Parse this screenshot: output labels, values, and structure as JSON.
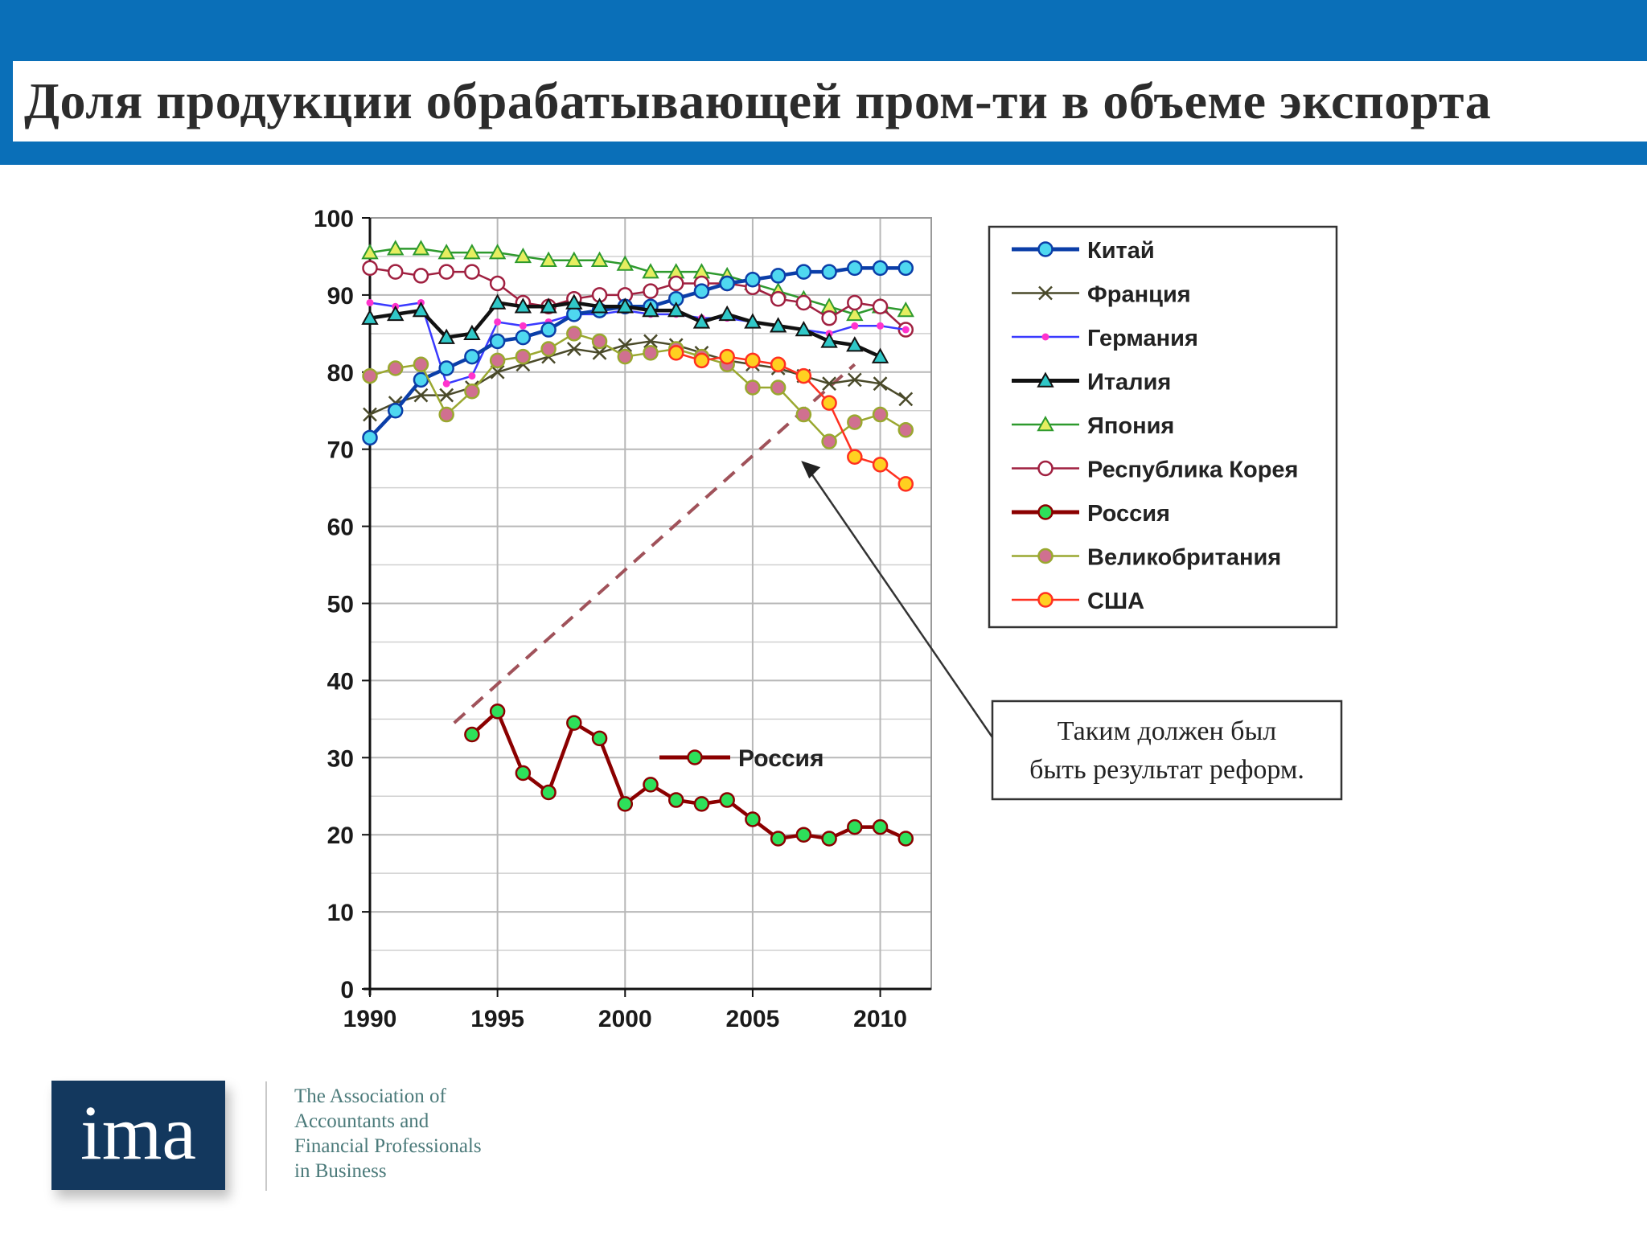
{
  "slide": {
    "title": "Доля продукции обрабатывающей пром-ти в объеме экспорта",
    "logo_text": "ima",
    "tagline": [
      "The Association of",
      "Accountants and",
      "Financial Professionals",
      "in Business"
    ],
    "colors": {
      "band": "#0a6fb8",
      "logo_bg": "#13385e"
    }
  },
  "chart_data": {
    "type": "line",
    "title": "",
    "xlabel": "",
    "ylabel": "",
    "xlim": [
      1990,
      2012
    ],
    "ylim": [
      0,
      100
    ],
    "x_ticks": [
      1990,
      1995,
      2000,
      2005,
      2010
    ],
    "y_ticks": [
      0,
      10,
      20,
      30,
      40,
      50,
      60,
      70,
      80,
      90,
      100
    ],
    "grid": true,
    "legend_position": "right",
    "series": [
      {
        "name": "Китай",
        "color": "#0b3ea8",
        "marker": "circle",
        "marker_fill": "#4fd8f0",
        "bold": true,
        "x": [
          1990,
          1991,
          1992,
          1993,
          1994,
          1995,
          1996,
          1997,
          1998,
          1999,
          2000,
          2001,
          2002,
          2003,
          2004,
          2005,
          2006,
          2007,
          2008,
          2009,
          2010,
          2011
        ],
        "y": [
          71.5,
          75,
          79,
          80.5,
          82,
          84,
          84.5,
          85.5,
          87.5,
          88,
          88.5,
          88.5,
          89.5,
          90.5,
          91.5,
          92,
          92.5,
          93,
          93,
          93.5,
          93.5,
          93.5
        ]
      },
      {
        "name": "Франция",
        "color": "#4a4a2a",
        "marker": "x",
        "bold": false,
        "x": [
          1990,
          1991,
          1992,
          1993,
          1994,
          1995,
          1996,
          1997,
          1998,
          1999,
          2000,
          2001,
          2002,
          2003,
          2004,
          2005,
          2006,
          2007,
          2008,
          2009,
          2010,
          2011
        ],
        "y": [
          74.5,
          76,
          77,
          77,
          78,
          80,
          81,
          82,
          83,
          82.5,
          83.5,
          84,
          83.5,
          82.5,
          81.5,
          81,
          80.5,
          79.5,
          78.5,
          79,
          78.5,
          76.5
        ]
      },
      {
        "name": "Германия",
        "color": "#3a3aff",
        "marker": "dot",
        "marker_fill": "#ff33cc",
        "bold": false,
        "x": [
          1990,
          1991,
          1992,
          1993,
          1994,
          1995,
          1996,
          1997,
          1998,
          1999,
          2000,
          2001,
          2002,
          2003,
          2004,
          2005,
          2006,
          2007,
          2008,
          2009,
          2010,
          2011
        ],
        "y": [
          89,
          88.5,
          89,
          78.5,
          79.5,
          86.5,
          86,
          86.5,
          87.5,
          87.5,
          88,
          87.5,
          87.5,
          87,
          87,
          86.5,
          86,
          85.5,
          85,
          86,
          86,
          85.5
        ]
      },
      {
        "name": "Италия",
        "color": "#111111",
        "marker": "triangle",
        "marker_fill": "#30c8c8",
        "bold": true,
        "x": [
          1990,
          1991,
          1992,
          1993,
          1994,
          1995,
          1996,
          1997,
          1998,
          1999,
          2000,
          2001,
          2002,
          2003,
          2004,
          2005,
          2006,
          2007,
          2008,
          2009,
          2010
        ],
        "y": [
          87,
          87.5,
          88,
          84.5,
          85,
          89,
          88.5,
          88.5,
          89,
          88.5,
          88.5,
          88,
          88,
          86.5,
          87.5,
          86.5,
          86,
          85.5,
          84,
          83.5,
          82
        ]
      },
      {
        "name": "Япония",
        "color": "#2e9a2e",
        "marker": "triangle",
        "marker_fill": "#e6ee60",
        "bold": false,
        "x": [
          1990,
          1991,
          1992,
          1993,
          1994,
          1995,
          1996,
          1997,
          1998,
          1999,
          2000,
          2001,
          2002,
          2003,
          2004,
          2005,
          2006,
          2007,
          2008,
          2009,
          2010,
          2011
        ],
        "y": [
          95.5,
          96,
          96,
          95.5,
          95.5,
          95.5,
          95,
          94.5,
          94.5,
          94.5,
          94,
          93,
          93,
          93,
          92.5,
          91.5,
          90.5,
          89.5,
          88.5,
          87.5,
          88.5,
          88
        ]
      },
      {
        "name": "Республика Корея",
        "color": "#a02040",
        "marker": "circle",
        "marker_fill": "#ffffff",
        "bold": false,
        "x": [
          1990,
          1991,
          1992,
          1993,
          1994,
          1995,
          1996,
          1997,
          1998,
          1999,
          2000,
          2001,
          2002,
          2003,
          2004,
          2005,
          2006,
          2007,
          2008,
          2009,
          2010,
          2011
        ],
        "y": [
          93.5,
          93,
          92.5,
          93,
          93,
          91.5,
          89,
          88.5,
          89.5,
          90,
          90,
          90.5,
          91.5,
          91.5,
          91.5,
          91,
          89.5,
          89,
          87,
          89,
          88.5,
          85.5
        ]
      },
      {
        "name": "Россия",
        "color": "#8b0000",
        "marker": "circle",
        "marker_fill": "#2ee05a",
        "bold": true,
        "x": [
          1994,
          1995,
          1996,
          1997,
          1998,
          1999,
          2000,
          2001,
          2002,
          2003,
          2004,
          2005,
          2006,
          2007,
          2008,
          2009,
          2010,
          2011
        ],
        "y": [
          33,
          36,
          28,
          25.5,
          34.5,
          32.5,
          24,
          26.5,
          24.5,
          24,
          24.5,
          22,
          19.5,
          20,
          19.5,
          21,
          21,
          19.5
        ]
      },
      {
        "name": "Великобритания",
        "color": "#9aa830",
        "marker": "circle",
        "marker_fill": "#d07090",
        "bold": false,
        "x": [
          1990,
          1991,
          1992,
          1993,
          1994,
          1995,
          1996,
          1997,
          1998,
          1999,
          2000,
          2001,
          2002,
          2003,
          2004,
          2005,
          2006,
          2007,
          2008,
          2009,
          2010,
          2011
        ],
        "y": [
          79.5,
          80.5,
          81,
          74.5,
          77.5,
          81.5,
          82,
          83,
          85,
          84,
          82,
          82.5,
          83,
          82,
          81,
          78,
          78,
          74.5,
          71,
          73.5,
          74.5,
          72.5
        ]
      },
      {
        "name": "США",
        "color": "#ff3020",
        "marker": "circle",
        "marker_fill": "#ffd020",
        "bold": false,
        "x": [
          2002,
          2003,
          2004,
          2005,
          2006,
          2007,
          2008,
          2009,
          2010,
          2011
        ],
        "y": [
          82.5,
          81.5,
          82,
          81.5,
          81,
          79.5,
          76,
          69,
          68,
          65.5
        ]
      }
    ],
    "inline_label": "Россия",
    "annotation": {
      "lines": [
        "Таким должен был",
        "быть результат реформ."
      ],
      "trend_line": {
        "from": [
          1993.3,
          34.5
        ],
        "to": [
          2009,
          81
        ]
      },
      "arrow_target": [
        2006.9,
        68.5
      ]
    }
  }
}
